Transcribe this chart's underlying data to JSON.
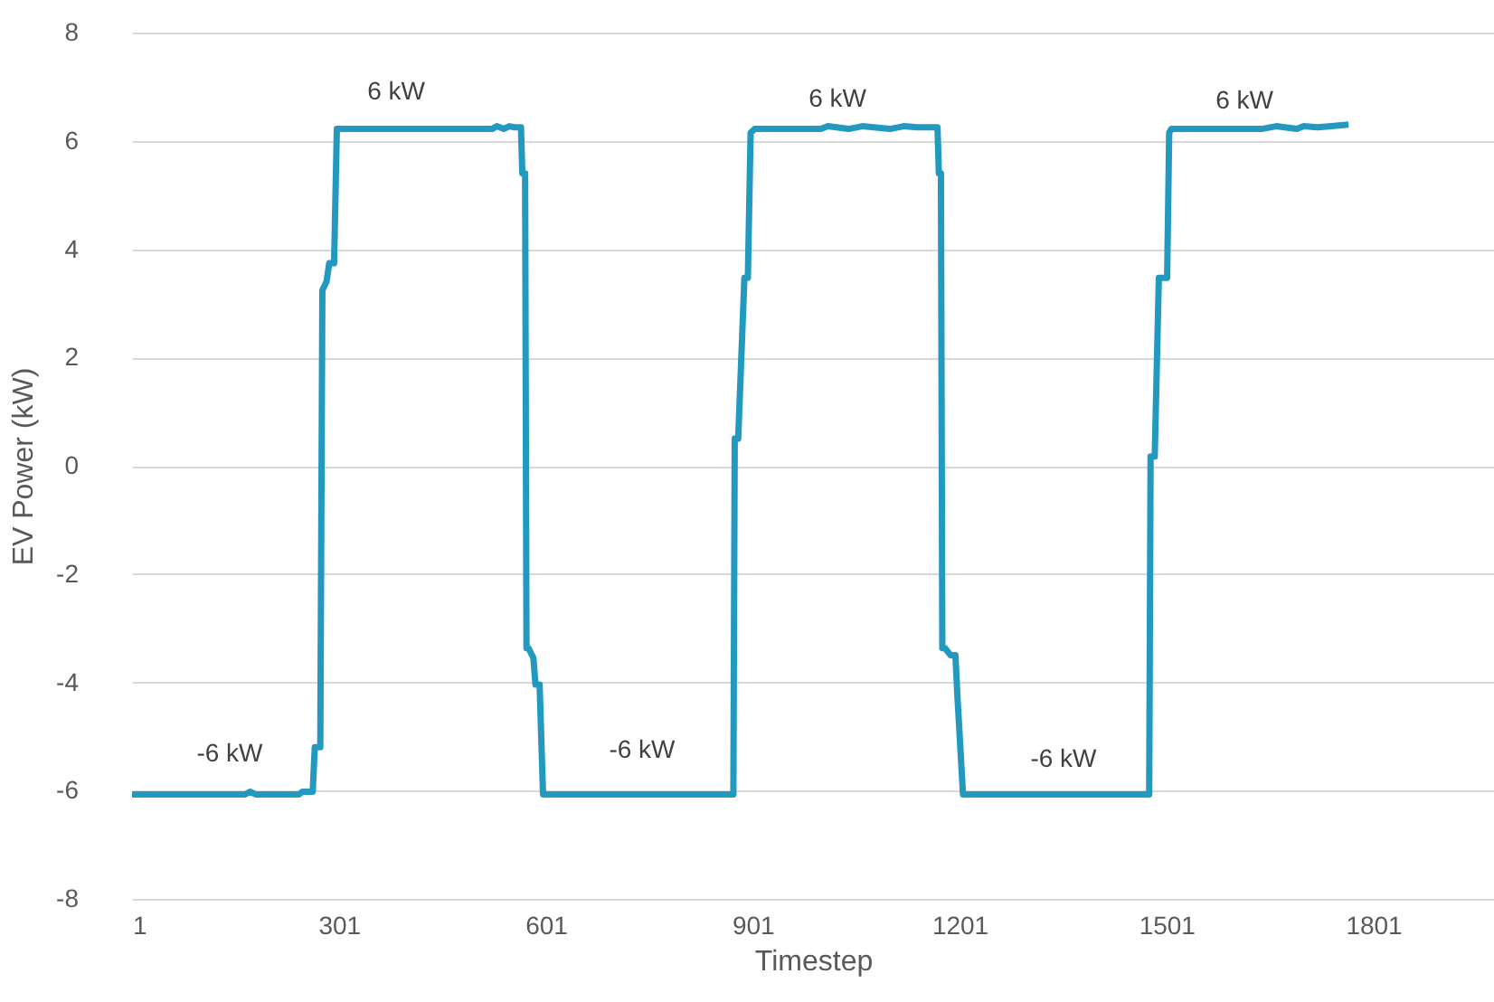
{
  "chart_data": {
    "type": "line",
    "xlabel": "Timestep",
    "ylabel": "EV Power (kW)",
    "xlim": [
      1,
      1976
    ],
    "xticks": [
      1,
      301,
      601,
      901,
      1201,
      1501,
      1801
    ],
    "ylim": [
      -8,
      8
    ],
    "yticks": [
      -8,
      -6,
      -4,
      -2,
      0,
      2,
      4,
      6,
      8
    ],
    "grid": "y",
    "marker": "none",
    "line_style": "solid",
    "series": [
      {
        "color": "#2399bf",
        "x": [
          1,
          165,
          172,
          180,
          243,
          248,
          263,
          266,
          274,
          277,
          283,
          287,
          294,
          298,
          523,
          530,
          540,
          548,
          556,
          565,
          567,
          571,
          573,
          576,
          583,
          586,
          592,
          597,
          873,
          875,
          880,
          889,
          894,
          898,
          904,
          1000,
          1010,
          1040,
          1060,
          1100,
          1120,
          1140,
          1169,
          1171,
          1174,
          1176,
          1180,
          1188,
          1195,
          1198,
          1206,
          1476,
          1478,
          1484,
          1490,
          1502,
          1505,
          1508,
          1639,
          1660,
          1690,
          1700,
          1720,
          1740,
          1765
        ],
        "values": [
          -6.07,
          -6.07,
          -6.02,
          -6.07,
          -6.07,
          -6.02,
          -6.02,
          -5.2,
          -5.2,
          3.24,
          3.4,
          3.74,
          3.74,
          6.22,
          6.22,
          6.27,
          6.22,
          6.27,
          6.25,
          6.25,
          5.4,
          5.4,
          -3.37,
          -3.37,
          -3.55,
          -4.04,
          -4.04,
          -6.07,
          -6.07,
          0.5,
          0.5,
          3.47,
          3.47,
          6.15,
          6.22,
          6.22,
          6.27,
          6.22,
          6.27,
          6.22,
          6.27,
          6.25,
          6.25,
          5.4,
          5.4,
          -3.37,
          -3.37,
          -3.5,
          -3.5,
          -4.28,
          -6.07,
          -6.07,
          0.17,
          0.17,
          3.47,
          3.47,
          6.15,
          6.22,
          6.22,
          6.27,
          6.22,
          6.27,
          6.25,
          6.27,
          6.3
        ]
      }
    ],
    "annotations": [
      "-6 kW",
      "6 kW",
      "-6 kW",
      "6 kW",
      "-6 kW",
      "6 kW"
    ]
  }
}
